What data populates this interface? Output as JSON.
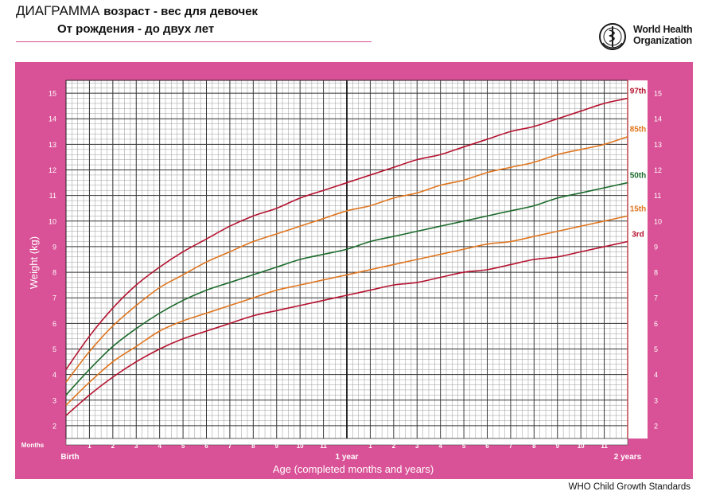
{
  "header": {
    "title_prefix": "ДИАГРАММА",
    "title_rest": "возраст - вес для девочек",
    "subtitle": "От рождения - до двух лет",
    "org_line1": "World Health",
    "org_line2": "Organization"
  },
  "footer": {
    "text": "WHO Child Growth Standards"
  },
  "colors": {
    "panel": "#d95196",
    "p97": "#b5122f",
    "p85": "#e0761f",
    "p50": "#1c6b2c",
    "p15": "#e0761f",
    "p3": "#b5122f"
  },
  "chart_data": {
    "type": "line",
    "title": "",
    "xlabel": "Age (completed months and years)",
    "ylabel": "Weight (kg)",
    "x_unit_label": "Months",
    "xlim": [
      0,
      24
    ],
    "ylim": [
      1.5,
      15.5
    ],
    "grid": true,
    "x_tick_labels": [
      {
        "month": 0,
        "label": "Birth"
      },
      {
        "month": 1,
        "label": "1"
      },
      {
        "month": 2,
        "label": "2"
      },
      {
        "month": 3,
        "label": "3"
      },
      {
        "month": 4,
        "label": "4"
      },
      {
        "month": 5,
        "label": "5"
      },
      {
        "month": 6,
        "label": "6"
      },
      {
        "month": 7,
        "label": "7"
      },
      {
        "month": 8,
        "label": "8"
      },
      {
        "month": 9,
        "label": "9"
      },
      {
        "month": 10,
        "label": "10"
      },
      {
        "month": 11,
        "label": "11"
      },
      {
        "month": 12,
        "label": "1 year"
      },
      {
        "month": 13,
        "label": "1"
      },
      {
        "month": 14,
        "label": "2"
      },
      {
        "month": 15,
        "label": "3"
      },
      {
        "month": 16,
        "label": "4"
      },
      {
        "month": 17,
        "label": "5"
      },
      {
        "month": 18,
        "label": "6"
      },
      {
        "month": 19,
        "label": "7"
      },
      {
        "month": 20,
        "label": "8"
      },
      {
        "month": 21,
        "label": "9"
      },
      {
        "month": 22,
        "label": "10"
      },
      {
        "month": 23,
        "label": "11"
      },
      {
        "month": 24,
        "label": "2 years"
      }
    ],
    "y_ticks": [
      2,
      3,
      4,
      5,
      6,
      7,
      8,
      9,
      10,
      11,
      12,
      13,
      14,
      15
    ],
    "x": [
      0,
      1,
      2,
      3,
      4,
      5,
      6,
      7,
      8,
      9,
      10,
      11,
      12,
      13,
      14,
      15,
      16,
      17,
      18,
      19,
      20,
      21,
      22,
      23,
      24
    ],
    "series": [
      {
        "name": "97th",
        "color": "#b5122f",
        "values": [
          4.2,
          5.5,
          6.6,
          7.5,
          8.2,
          8.8,
          9.3,
          9.8,
          10.2,
          10.5,
          10.9,
          11.2,
          11.5,
          11.8,
          12.1,
          12.4,
          12.6,
          12.9,
          13.2,
          13.5,
          13.7,
          14.0,
          14.3,
          14.6,
          14.8
        ]
      },
      {
        "name": "85th",
        "color": "#e0761f",
        "values": [
          3.7,
          4.9,
          5.9,
          6.7,
          7.4,
          7.9,
          8.4,
          8.8,
          9.2,
          9.5,
          9.8,
          10.1,
          10.4,
          10.6,
          10.9,
          11.1,
          11.4,
          11.6,
          11.9,
          12.1,
          12.3,
          12.6,
          12.8,
          13.0,
          13.3
        ]
      },
      {
        "name": "50th",
        "color": "#1c6b2c",
        "values": [
          3.2,
          4.2,
          5.1,
          5.8,
          6.4,
          6.9,
          7.3,
          7.6,
          7.9,
          8.2,
          8.5,
          8.7,
          8.9,
          9.2,
          9.4,
          9.6,
          9.8,
          10.0,
          10.2,
          10.4,
          10.6,
          10.9,
          11.1,
          11.3,
          11.5
        ]
      },
      {
        "name": "15th",
        "color": "#e0761f",
        "values": [
          2.8,
          3.7,
          4.5,
          5.1,
          5.7,
          6.1,
          6.4,
          6.7,
          7.0,
          7.3,
          7.5,
          7.7,
          7.9,
          8.1,
          8.3,
          8.5,
          8.7,
          8.9,
          9.1,
          9.2,
          9.4,
          9.6,
          9.8,
          10.0,
          10.2
        ]
      },
      {
        "name": "3rd",
        "color": "#b5122f",
        "values": [
          2.4,
          3.2,
          3.9,
          4.5,
          5.0,
          5.4,
          5.7,
          6.0,
          6.3,
          6.5,
          6.7,
          6.9,
          7.1,
          7.3,
          7.5,
          7.6,
          7.8,
          8.0,
          8.1,
          8.3,
          8.5,
          8.6,
          8.8,
          9.0,
          9.2
        ]
      }
    ]
  }
}
